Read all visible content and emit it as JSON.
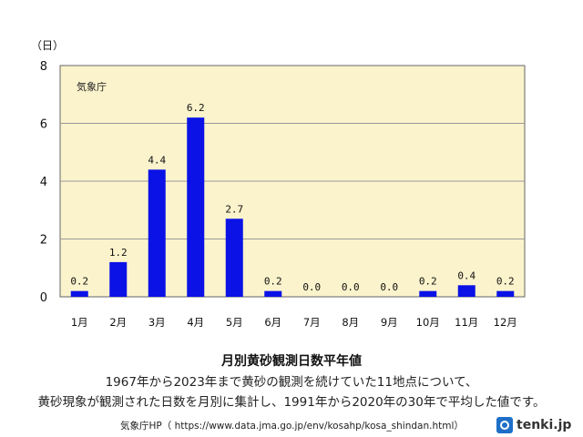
{
  "chart_data": {
    "type": "bar",
    "unit_label": "（日）",
    "source_tag": "気象庁",
    "categories": [
      "1月",
      "2月",
      "3月",
      "4月",
      "5月",
      "6月",
      "7月",
      "8月",
      "9月",
      "10月",
      "11月",
      "12月"
    ],
    "values": [
      0.2,
      1.2,
      4.4,
      6.2,
      2.7,
      0.2,
      0.0,
      0.0,
      0.0,
      0.2,
      0.4,
      0.2
    ],
    "value_labels": [
      "0.2",
      "1.2",
      "4.4",
      "6.2",
      "2.7",
      "0.2",
      "0.0",
      "0.0",
      "0.0",
      "0.2",
      "0.4",
      "0.2"
    ],
    "yticks": [
      0,
      2,
      4,
      6,
      8
    ],
    "ylim": [
      0,
      8
    ],
    "grid": true,
    "colors": {
      "bar": "#0a12e6",
      "plot_bg": "#fbf3cc",
      "grid": "#999999"
    }
  },
  "caption": {
    "title": "月別黄砂観測日数平年値",
    "line1": "1967年から2023年まで黄砂の観測を続けていた11地点について、",
    "line2": "黄砂現象が観測された日数を月別に集計し、1991年から2020年の30年で平均した値です。"
  },
  "source": "気象庁HP（ https://www.data.jma.go.jp/env/kosahp/kosa_shindan.html）",
  "logo": {
    "text": "tenki.jp",
    "icon": "tenki-logo-icon"
  }
}
